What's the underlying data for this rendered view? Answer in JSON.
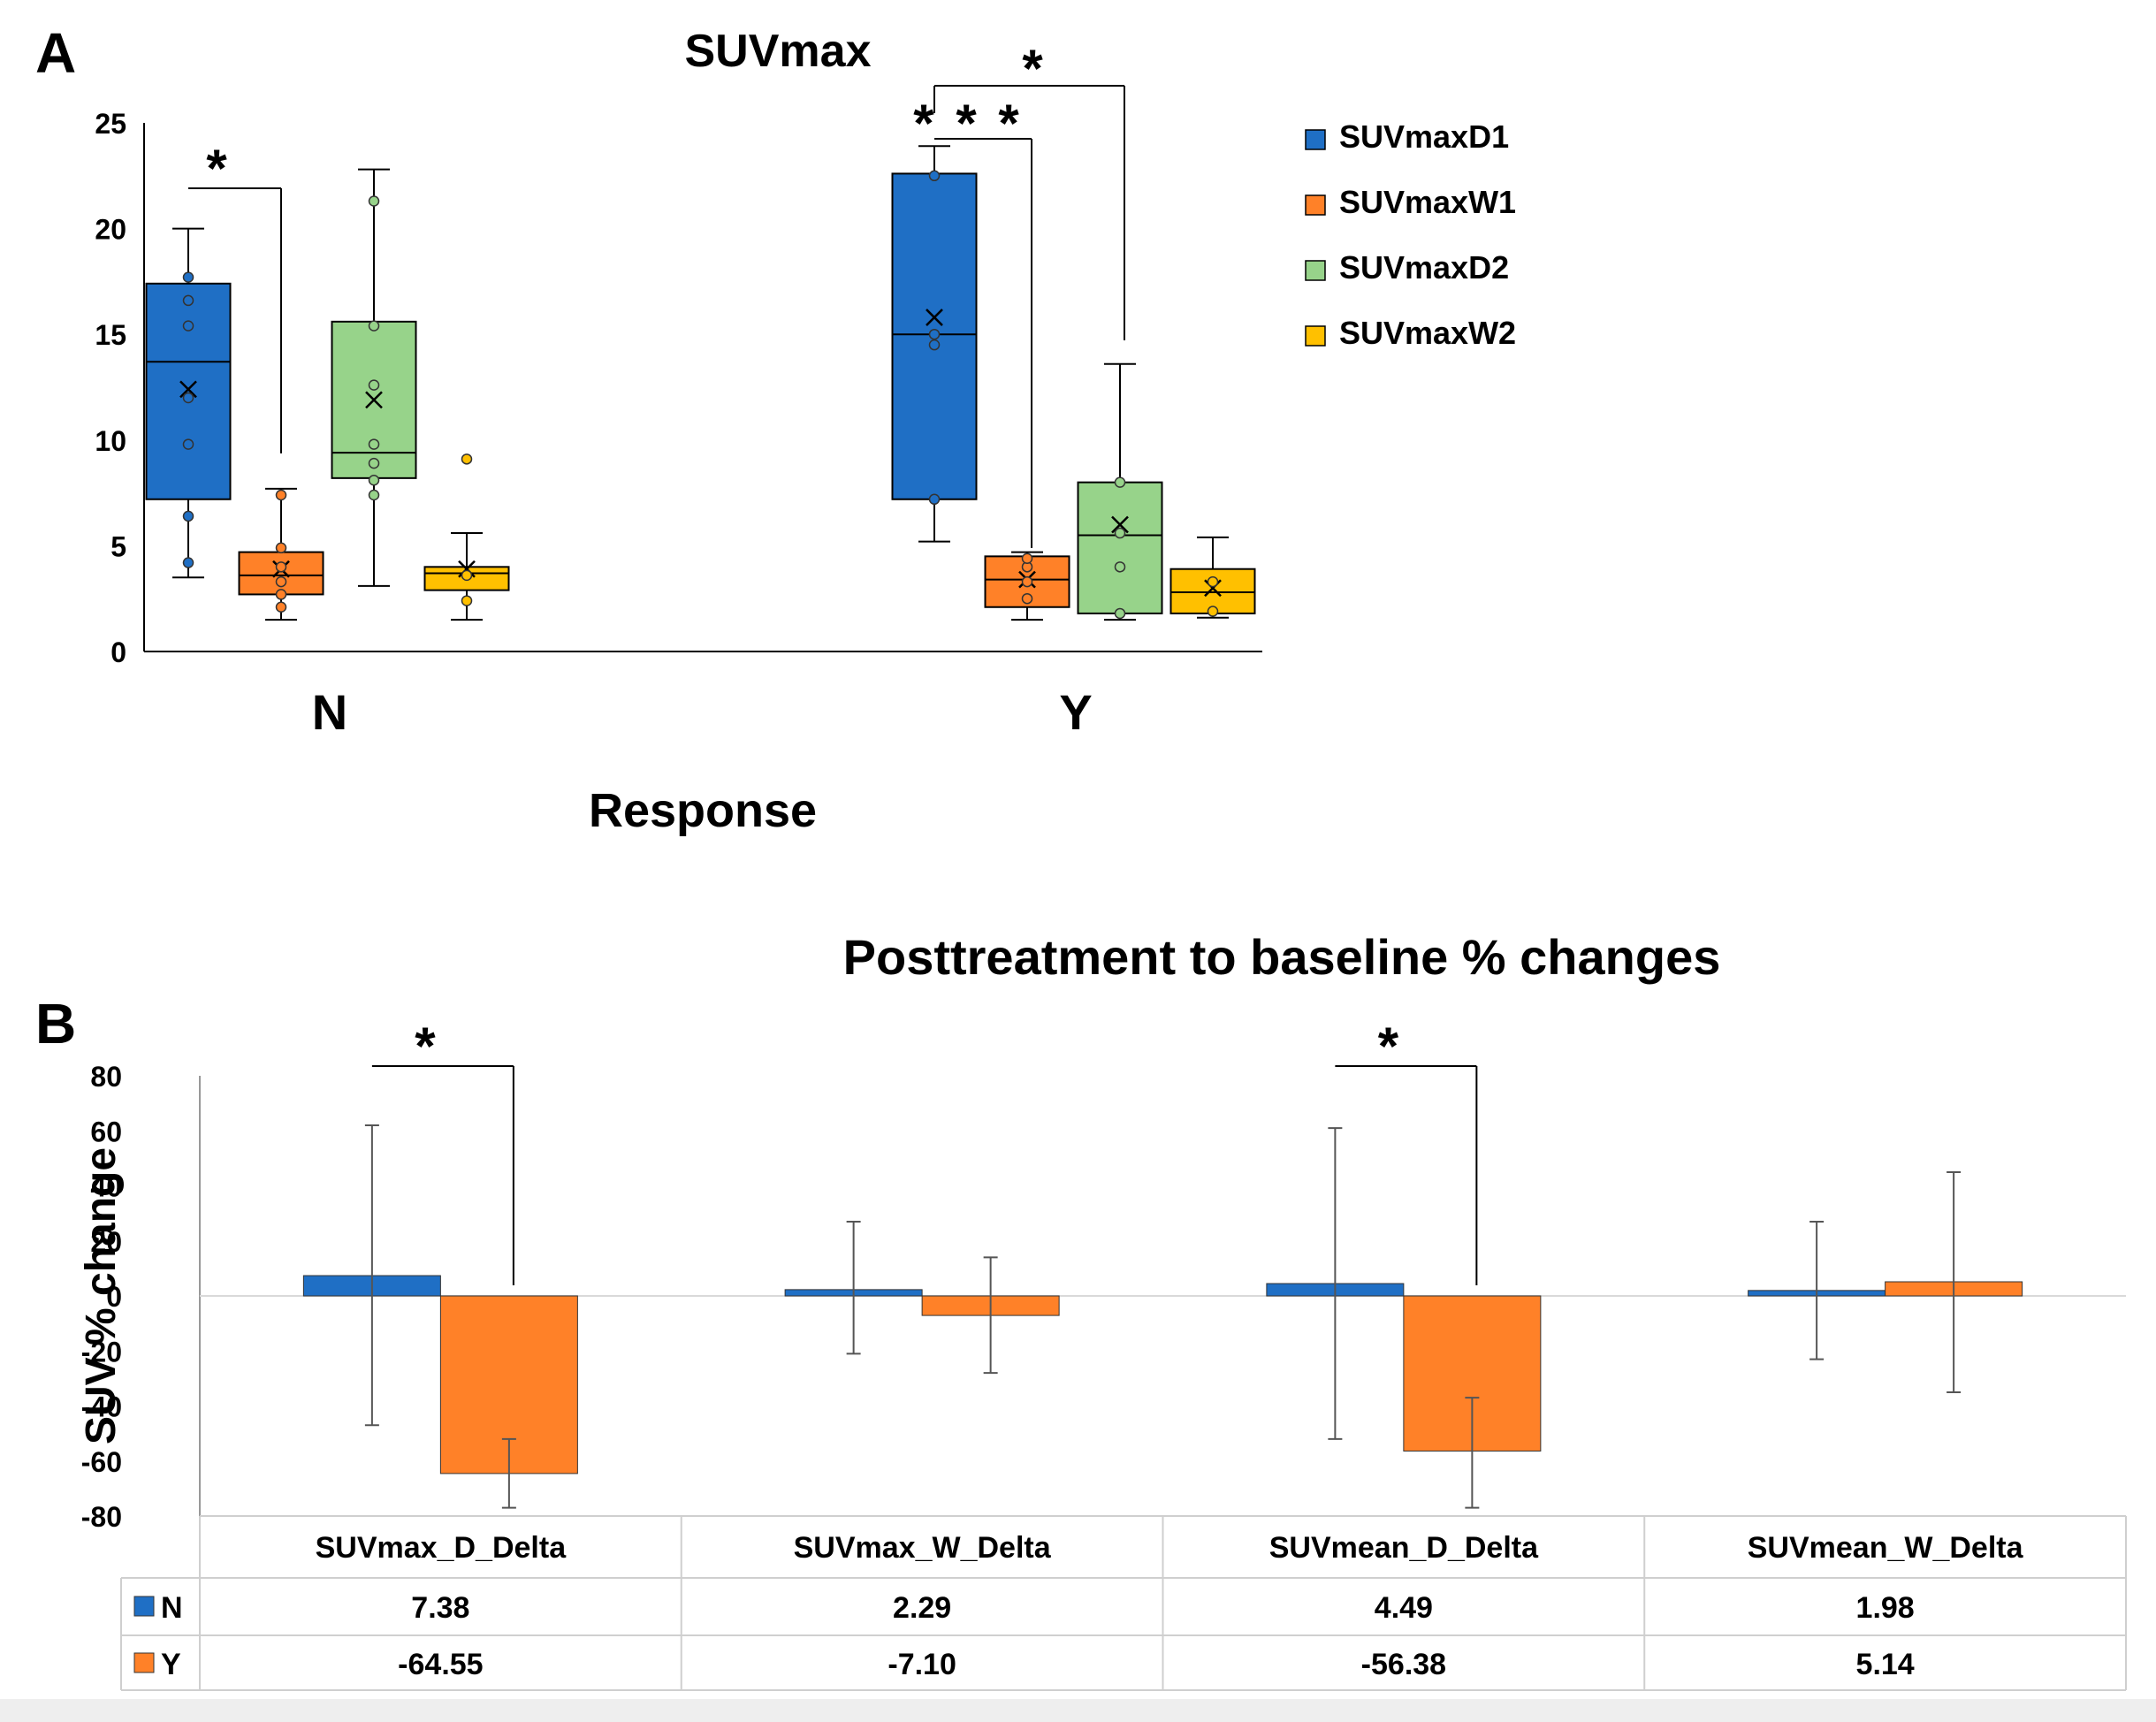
{
  "panel_labels": {
    "a": "A",
    "b": "B"
  },
  "colors": {
    "SUVmaxD1": "#1f6fc5",
    "SUVmaxW1": "#ff8128",
    "SUVmaxD2": "#97d38a",
    "SUVmaxW2": "#ffc000",
    "N": "#1f6fc5",
    "Y": "#ff8128"
  },
  "chart_data": [
    {
      "type": "boxplot",
      "title": "SUVmax",
      "xlabel": "Response",
      "ylabel": "",
      "ylim": [
        0,
        25
      ],
      "yticks": [
        "0",
        "5",
        "10",
        "15",
        "20",
        "25"
      ],
      "categories": [
        "N",
        "Y"
      ],
      "legend": [
        "SUVmaxD1",
        "SUVmaxW1",
        "SUVmaxD2",
        "SUVmaxW2"
      ],
      "legend_position": "right",
      "boxes": [
        {
          "group": "N",
          "series": "SUVmaxD1",
          "min": 3.5,
          "q1": 7.2,
          "median": 13.7,
          "q3": 17.4,
          "max": 20.0,
          "mean": 12.4,
          "points": [
            4.2,
            6.4,
            9.8,
            12.0,
            15.4,
            16.6,
            17.7
          ]
        },
        {
          "group": "N",
          "series": "SUVmaxW1",
          "min": 1.5,
          "q1": 2.7,
          "median": 3.6,
          "q3": 4.7,
          "max": 7.7,
          "mean": 3.9,
          "points": [
            2.1,
            2.7,
            3.3,
            4.0,
            4.9,
            7.4
          ]
        },
        {
          "group": "N",
          "series": "SUVmaxD2",
          "min": 3.1,
          "q1": 8.2,
          "median": 9.4,
          "q3": 15.6,
          "max": 22.8,
          "mean": 11.9,
          "points": [
            7.4,
            8.1,
            8.9,
            9.8,
            12.6,
            15.4,
            21.3
          ]
        },
        {
          "group": "N",
          "series": "SUVmaxW2",
          "min": 1.5,
          "q1": 2.9,
          "median": 3.7,
          "q3": 4.0,
          "max": 5.6,
          "mean": 3.9,
          "points": [
            2.4,
            3.6,
            9.1
          ]
        },
        {
          "group": "Y",
          "series": "SUVmaxD1",
          "min": 5.2,
          "q1": 7.2,
          "median": 15.0,
          "q3": 22.6,
          "max": 23.9,
          "mean": 15.8,
          "points": [
            7.2,
            14.5,
            15.0,
            22.5
          ]
        },
        {
          "group": "Y",
          "series": "SUVmaxW1",
          "min": 1.5,
          "q1": 2.1,
          "median": 3.4,
          "q3": 4.5,
          "max": 4.7,
          "mean": 3.4,
          "points": [
            2.5,
            3.3,
            4.0,
            4.4
          ]
        },
        {
          "group": "Y",
          "series": "SUVmaxD2",
          "min": 1.5,
          "q1": 1.8,
          "median": 5.5,
          "q3": 8.0,
          "max": 13.6,
          "mean": 6.0,
          "points": [
            1.8,
            4.0,
            5.6,
            8.0
          ]
        },
        {
          "group": "Y",
          "series": "SUVmaxW2",
          "min": 1.6,
          "q1": 1.8,
          "median": 2.8,
          "q3": 3.9,
          "max": 5.4,
          "mean": 3.0,
          "points": [
            1.9,
            3.3
          ]
        }
      ],
      "annotations": [
        {
          "text": "*",
          "from": "N:SUVmaxD1",
          "to": "N:SUVmaxW1"
        },
        {
          "text": "* * *",
          "from": "Y:SUVmaxD1",
          "to": "Y:SUVmaxW1"
        },
        {
          "text": "*",
          "from": "Y:SUVmaxD1",
          "to": "Y:SUVmaxD2"
        }
      ]
    },
    {
      "type": "bar",
      "title": "Posttreatment to baseline % changes",
      "xlabel": "",
      "ylabel": "SUV % change",
      "ylim": [
        -80,
        80
      ],
      "yticks": [
        "-80",
        "-60",
        "-40",
        "-20",
        "0",
        "20",
        "40",
        "60",
        "80"
      ],
      "categories": [
        "SUVmax_D_Delta",
        "SUVmax_W_Delta",
        "SUVmean_D_Delta",
        "SUVmean_W_Delta"
      ],
      "series": [
        {
          "name": "N",
          "values": [
            7.38,
            2.29,
            4.49,
            1.98
          ],
          "labels": [
            "7.38",
            "2.29",
            "4.49",
            "1.98"
          ],
          "err_low": [
            -47,
            -21,
            -52,
            -23
          ],
          "err_high": [
            62,
            27,
            61,
            27
          ]
        },
        {
          "name": "Y",
          "values": [
            -64.55,
            -7.1,
            -56.38,
            5.14
          ],
          "labels": [
            "-64.55",
            "-7.10",
            "-56.38",
            "5.14"
          ],
          "err_low": [
            -77,
            -28,
            -77,
            -35
          ],
          "err_high": [
            -52,
            14,
            -37,
            45
          ]
        }
      ],
      "annotations": [
        {
          "text": "*",
          "category": "SUVmax_D_Delta"
        },
        {
          "text": "*",
          "category": "SUVmean_D_Delta"
        }
      ]
    }
  ]
}
